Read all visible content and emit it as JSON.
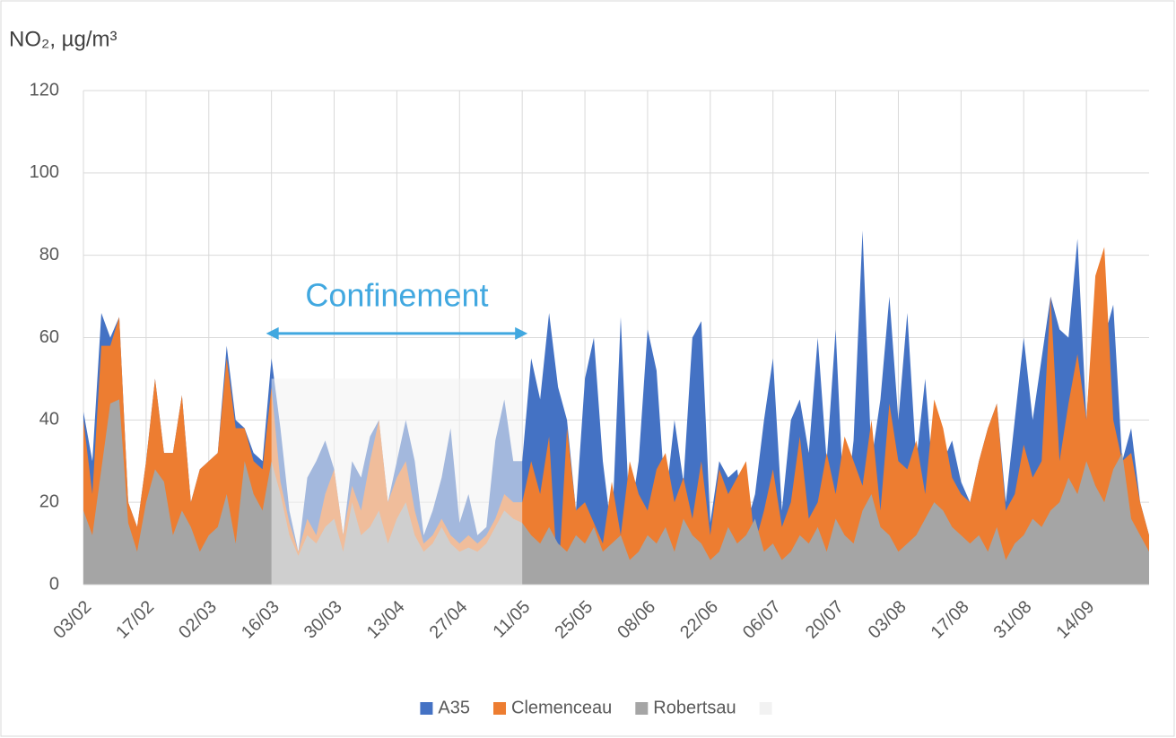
{
  "chart_data": {
    "type": "area",
    "y_label": "NO₂, µg/m³",
    "categories": [
      "03/02",
      null,
      null,
      null,
      null,
      null,
      null,
      "17/02",
      null,
      null,
      null,
      null,
      null,
      null,
      "02/03",
      null,
      null,
      null,
      null,
      null,
      null,
      "16/03",
      null,
      null,
      null,
      null,
      null,
      null,
      "30/03",
      null,
      null,
      null,
      null,
      null,
      null,
      "13/04",
      null,
      null,
      null,
      null,
      null,
      null,
      "27/04",
      null,
      null,
      null,
      null,
      null,
      null,
      "11/05",
      null,
      null,
      null,
      null,
      null,
      null,
      "25/05",
      null,
      null,
      null,
      null,
      null,
      null,
      "08/06",
      null,
      null,
      null,
      null,
      null,
      null,
      "22/06",
      null,
      null,
      null,
      null,
      null,
      null,
      "06/07",
      null,
      null,
      null,
      null,
      null,
      null,
      "20/07",
      null,
      null,
      null,
      null,
      null,
      null,
      "03/08",
      null,
      null,
      null,
      null,
      null,
      null,
      "17/08",
      null,
      null,
      null,
      null,
      null,
      null,
      "31/08",
      null,
      null,
      null,
      null,
      null,
      null,
      "14/09",
      null,
      null,
      null,
      null,
      null,
      null,
      null
    ],
    "series": [
      {
        "name": "A35",
        "color": "#4472c4",
        "values": [
          42,
          30,
          66,
          60,
          65,
          20,
          14,
          30,
          50,
          32,
          32,
          46,
          20,
          28,
          30,
          32,
          58,
          40,
          38,
          32,
          30,
          55,
          38,
          18,
          8,
          26,
          30,
          35,
          28,
          12,
          30,
          26,
          36,
          40,
          20,
          30,
          40,
          30,
          12,
          18,
          26,
          38,
          15,
          22,
          12,
          14,
          35,
          45,
          30,
          30,
          55,
          45,
          66,
          48,
          40,
          18,
          50,
          60,
          30,
          12,
          65,
          15,
          30,
          62,
          52,
          20,
          40,
          25,
          60,
          64,
          15,
          30,
          26,
          28,
          14,
          22,
          40,
          55,
          18,
          40,
          45,
          32,
          60,
          30,
          62,
          15,
          35,
          86,
          30,
          45,
          70,
          40,
          66,
          30,
          50,
          22,
          30,
          35,
          25,
          20,
          30,
          38,
          44,
          20,
          40,
          60,
          40,
          55,
          70,
          62,
          60,
          84,
          40,
          72,
          60,
          68,
          30,
          38,
          20,
          12
        ]
      },
      {
        "name": "Clemenceau",
        "color": "#ed7d31",
        "values": [
          40,
          22,
          58,
          58,
          65,
          20,
          14,
          30,
          50,
          32,
          32,
          46,
          20,
          28,
          30,
          32,
          55,
          38,
          38,
          30,
          28,
          48,
          25,
          15,
          8,
          16,
          12,
          22,
          28,
          12,
          24,
          18,
          30,
          40,
          20,
          26,
          30,
          18,
          10,
          12,
          16,
          12,
          10,
          12,
          10,
          12,
          16,
          22,
          20,
          20,
          30,
          22,
          36,
          0,
          38,
          18,
          20,
          15,
          10,
          25,
          12,
          30,
          22,
          18,
          28,
          32,
          20,
          26,
          16,
          30,
          12,
          28,
          22,
          26,
          30,
          10,
          18,
          28,
          14,
          20,
          36,
          16,
          20,
          32,
          22,
          36,
          30,
          24,
          40,
          18,
          44,
          30,
          28,
          35,
          22,
          45,
          38,
          26,
          22,
          20,
          30,
          38,
          44,
          18,
          22,
          34,
          26,
          30,
          70,
          30,
          44,
          56,
          40,
          75,
          82,
          40,
          30,
          32,
          20,
          12
        ]
      },
      {
        "name": "Robertsau",
        "color": "#a5a5a5",
        "values": [
          18,
          12,
          28,
          44,
          45,
          15,
          8,
          20,
          28,
          25,
          12,
          18,
          14,
          8,
          12,
          14,
          22,
          10,
          30,
          22,
          18,
          30,
          22,
          12,
          7,
          12,
          10,
          14,
          16,
          8,
          20,
          12,
          14,
          18,
          10,
          16,
          20,
          12,
          8,
          10,
          14,
          10,
          8,
          9,
          8,
          10,
          14,
          18,
          16,
          15,
          12,
          10,
          14,
          10,
          8,
          12,
          10,
          14,
          8,
          10,
          12,
          6,
          8,
          12,
          10,
          14,
          8,
          16,
          12,
          10,
          6,
          8,
          14,
          10,
          12,
          16,
          8,
          10,
          6,
          8,
          12,
          10,
          14,
          8,
          16,
          12,
          10,
          18,
          22,
          14,
          12,
          8,
          10,
          12,
          16,
          20,
          18,
          14,
          12,
          10,
          12,
          8,
          14,
          6,
          10,
          12,
          16,
          14,
          18,
          20,
          26,
          22,
          30,
          24,
          20,
          28,
          32,
          16,
          12,
          8
        ]
      }
    ],
    "ylim": [
      0,
      120
    ],
    "yticks": [
      0,
      20,
      40,
      60,
      80,
      100,
      120
    ],
    "grid": true,
    "legend": "bottom",
    "annotation": {
      "text": "Confinement",
      "span": [
        "16/03",
        "11/05"
      ],
      "arrow_y": 61,
      "shade_top": 50,
      "color": "#41a8e0",
      "shade_color": "#f2f2f2"
    }
  }
}
